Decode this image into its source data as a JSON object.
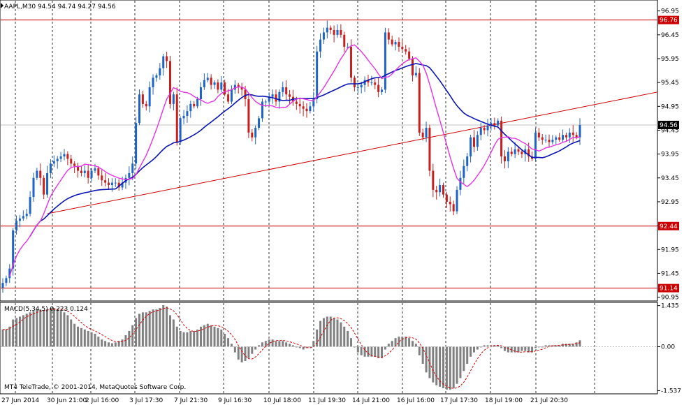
{
  "header": {
    "symbol_info": "AAPL,M30  94.54 94.74 94.27 94.56",
    "macd_info": "MACD(5,34,5) 0.223 0.124",
    "copyright": "MT4 TeleTrade, © 2001-2014, MetaQuotes Software Corp."
  },
  "colors": {
    "bull_candle": "#1e64c8",
    "bear_candle": "#c81e1e",
    "ma_fast": "#e632e6",
    "ma_slow": "#0a14b4",
    "level_line": "#cc0000",
    "trend_line": "#cc0000",
    "histogram": "#808080",
    "signal": "#dd0000",
    "current_price_bg": "#000000"
  },
  "price_axis": {
    "ticks": [
      "96.95",
      "96.45",
      "95.95",
      "95.45",
      "94.95",
      "94.45",
      "93.95",
      "93.45",
      "92.95",
      "92.45",
      "91.95",
      "91.45",
      "90.95"
    ],
    "levels": [
      {
        "price": 96.76,
        "label": "96.76"
      },
      {
        "price": 92.44,
        "label": "92.44"
      },
      {
        "price": 91.14,
        "label": "91.14"
      }
    ],
    "current_price": {
      "price": 94.56,
      "label": "94.56"
    },
    "range": [
      90.9,
      97.15
    ]
  },
  "macd_axis": {
    "ticks": [
      "1.435",
      "0.00",
      "-1.537"
    ],
    "range": [
      -1.6,
      1.5
    ]
  },
  "time_axis": {
    "labels": [
      "27 Jun 2014",
      "30 Jun 21:00",
      "2 Jul 16:00",
      "3 Jul 17:30",
      "7 Jul 21:30",
      "9 Jul 16:30",
      "10 Jul 18:00",
      "11 Jul 19:30",
      "14 Jul 21:00",
      "16 Jul 16:00",
      "17 Jul 17:30",
      "18 Jul 19:00",
      "21 Jul 20:30"
    ]
  },
  "chart_data": {
    "type": "candlestick",
    "symbol": "AAPL",
    "timeframe": "M30",
    "current": {
      "open": 94.54,
      "high": 94.74,
      "low": 94.27,
      "close": 94.56
    },
    "close_series": [
      91.25,
      91.35,
      91.55,
      92.35,
      92.55,
      92.6,
      92.65,
      92.7,
      93.05,
      93.45,
      93.6,
      93.45,
      93.1,
      93.55,
      93.75,
      93.8,
      93.85,
      93.9,
      93.95,
      93.85,
      93.75,
      93.7,
      93.6,
      93.55,
      93.6,
      93.45,
      93.6,
      93.65,
      93.5,
      93.4,
      93.35,
      93.3,
      93.35,
      93.35,
      93.25,
      93.35,
      93.45,
      93.55,
      93.75,
      94.6,
      95.2,
      95.0,
      94.95,
      95.35,
      95.55,
      95.6,
      95.75,
      96.0,
      95.9,
      95.0,
      95.2,
      94.2,
      94.7,
      94.75,
      94.85,
      95.0,
      94.95,
      95.1,
      95.35,
      95.5,
      95.55,
      95.4,
      95.45,
      95.3,
      95.45,
      95.2,
      95.05,
      95.3,
      95.4,
      95.35,
      95.3,
      95.1,
      94.4,
      94.3,
      94.5,
      94.7,
      95.05,
      95.05,
      95.15,
      95.2,
      95.05,
      95.25,
      95.35,
      95.2,
      95.15,
      95.05,
      95.0,
      94.95,
      94.9,
      94.85,
      94.95,
      95.1,
      96.1,
      96.35,
      96.5,
      96.6,
      96.55,
      96.45,
      96.55,
      96.45,
      96.2,
      96.2,
      95.55,
      95.35,
      95.35,
      95.4,
      95.5,
      95.45,
      95.45,
      95.4,
      95.25,
      95.3,
      96.5,
      96.35,
      96.25,
      96.3,
      96.2,
      96.15,
      96.1,
      95.95,
      95.6,
      95.65,
      94.4,
      94.3,
      94.5,
      93.6,
      93.2,
      93.15,
      93.3,
      93.1,
      92.95,
      92.9,
      92.75,
      93.2,
      93.45,
      93.7,
      93.9,
      94.3,
      94.1,
      94.35,
      94.5,
      94.45,
      94.55,
      94.6,
      94.55,
      94.65,
      93.9,
      93.8,
      94.0,
      93.95,
      94.05,
      94.0,
      93.95,
      94.05,
      93.9,
      93.85,
      94.4,
      94.3,
      94.25,
      94.25,
      94.2,
      94.25,
      94.3,
      94.25,
      94.35,
      94.3,
      94.4,
      94.35,
      94.3,
      94.56
    ],
    "ma_fast_period_note": "",
    "support_levels": [
      92.44,
      91.14
    ],
    "resistance_levels": [
      96.76
    ],
    "macd": {
      "histogram": [
        0.6,
        0.6,
        0.7,
        0.95,
        1.0,
        1.05,
        1.1,
        1.15,
        1.2,
        1.25,
        1.3,
        1.3,
        1.25,
        1.3,
        1.35,
        1.35,
        1.3,
        1.25,
        1.2,
        1.1,
        0.95,
        0.8,
        0.7,
        0.65,
        0.6,
        0.55,
        0.5,
        0.45,
        0.35,
        0.25,
        0.2,
        0.15,
        0.12,
        0.15,
        0.2,
        0.25,
        0.4,
        0.55,
        0.75,
        1.0,
        1.15,
        1.2,
        1.2,
        1.25,
        1.3,
        1.3,
        1.35,
        1.45,
        1.4,
        1.1,
        0.95,
        0.7,
        0.55,
        0.5,
        0.5,
        0.55,
        0.55,
        0.6,
        0.7,
        0.75,
        0.8,
        0.75,
        0.7,
        0.65,
        0.6,
        0.45,
        0.3,
        0.1,
        -0.2,
        -0.45,
        -0.55,
        -0.5,
        -0.4,
        -0.25,
        -0.1,
        0.05,
        0.15,
        0.2,
        0.25,
        0.25,
        0.2,
        0.2,
        0.2,
        0.15,
        0.1,
        0.05,
        0.0,
        -0.05,
        -0.1,
        -0.05,
        0.0,
        0.2,
        0.6,
        0.9,
        1.0,
        1.05,
        1.05,
        1.0,
        0.95,
        0.85,
        0.7,
        0.55,
        0.3,
        0.0,
        -0.2,
        -0.3,
        -0.35,
        -0.35,
        -0.35,
        -0.35,
        -0.4,
        -0.4,
        -0.1,
        0.1,
        0.2,
        0.3,
        0.35,
        0.35,
        0.35,
        0.3,
        0.2,
        0.1,
        -0.3,
        -0.6,
        -0.9,
        -1.1,
        -1.25,
        -1.35,
        -1.4,
        -1.45,
        -1.5,
        -1.5,
        -1.45,
        -1.3,
        -1.1,
        -0.85,
        -0.6,
        -0.35,
        -0.2,
        -0.1,
        0.0,
        0.05,
        0.05,
        0.05,
        0.05,
        0.05,
        -0.05,
        -0.15,
        -0.2,
        -0.2,
        -0.2,
        -0.2,
        -0.15,
        -0.15,
        -0.2,
        -0.2,
        -0.05,
        0.0,
        0.0,
        0.05,
        0.05,
        0.05,
        0.05,
        0.05,
        0.1,
        0.1,
        0.1,
        0.1,
        0.15,
        0.223
      ],
      "signal_last": 0.124,
      "histogram_last": 0.223
    }
  }
}
